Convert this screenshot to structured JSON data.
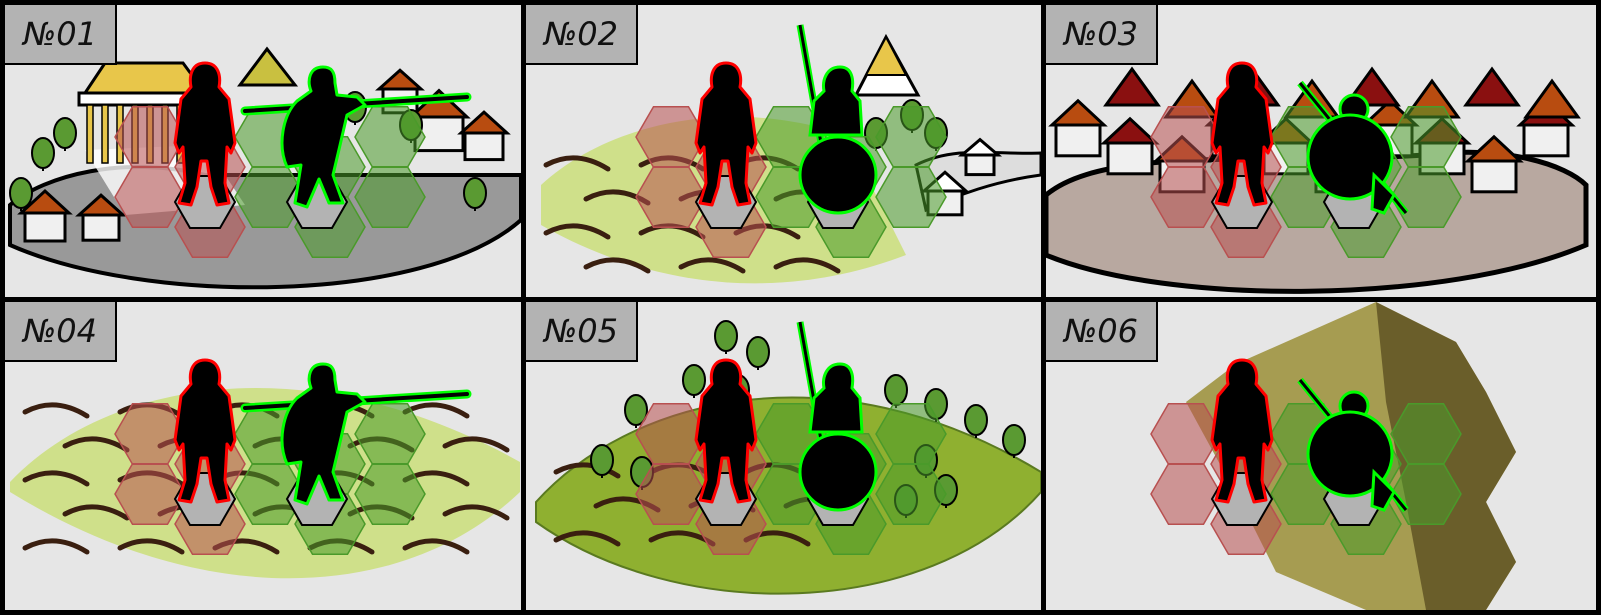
{
  "panels": [
    {
      "label": "№01",
      "terrain": "town"
    },
    {
      "label": "№02",
      "terrain": "fields-with-village"
    },
    {
      "label": "№03",
      "terrain": "dense-city"
    },
    {
      "label": "№04",
      "terrain": "fields"
    },
    {
      "label": "№05",
      "terrain": "forest-fields"
    },
    {
      "label": "№06",
      "terrain": "hills"
    }
  ],
  "units": {
    "attacker": {
      "name": "red-outlined-soldier",
      "color": "#ff0000"
    },
    "defender_variants": [
      "spearman-throwing",
      "hoplite-with-round-shield",
      "crouching-hoplite"
    ],
    "defender_color": "#00ff00"
  },
  "colors": {
    "panel_bg": "#e6e6e6",
    "label_bg": "#b3b3b3",
    "red_hex": "#b85050",
    "green_hex": "#4a9a2a"
  }
}
